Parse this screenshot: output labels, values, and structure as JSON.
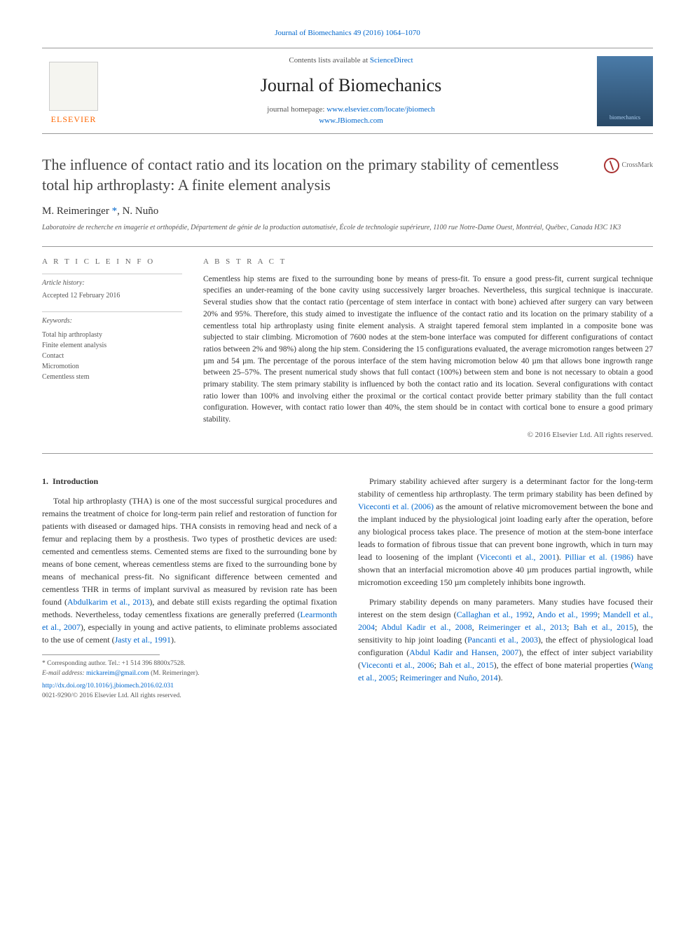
{
  "top_citation": "Journal of Biomechanics 49 (2016) 1064–1070",
  "header": {
    "contents_prefix": "Contents lists available at ",
    "contents_link": "ScienceDirect",
    "journal_name": "Journal of Biomechanics",
    "homepage_prefix": "journal homepage: ",
    "homepage_link1": "www.elsevier.com/locate/jbiomech",
    "homepage_link2": "www.JBiomech.com",
    "publisher_logo_text": "ELSEVIER",
    "cover_text": "biomechanics"
  },
  "crossmark_label": "CrossMark",
  "title": "The influence of contact ratio and its location on the primary stability of cementless total hip arthroplasty: A finite element analysis",
  "authors": {
    "a1": "M. Reimeringer",
    "a2": "N. Nuño",
    "corr": "*"
  },
  "affiliation": "Laboratoire de recherche en imagerie et orthopédie, Département de génie de la production automatisée, École de technologie supérieure, 1100 rue Notre-Dame Ouest, Montréal, Québec, Canada H3C 1K3",
  "article_info": {
    "heading": "A R T I C L E   I N F O",
    "history_label": "Article history:",
    "history_value": "Accepted 12 February 2016",
    "keywords_label": "Keywords:",
    "keywords": [
      "Total hip arthroplasty",
      "Finite element analysis",
      "Contact",
      "Micromotion",
      "Cementless stem"
    ]
  },
  "abstract": {
    "heading": "A B S T R A C T",
    "text": "Cementless hip stems are fixed to the surrounding bone by means of press-fit. To ensure a good press-fit, current surgical technique specifies an under-reaming of the bone cavity using successively larger broaches. Nevertheless, this surgical technique is inaccurate. Several studies show that the contact ratio (percentage of stem interface in contact with bone) achieved after surgery can vary between 20% and 95%. Therefore, this study aimed to investigate the influence of the contact ratio and its location on the primary stability of a cementless total hip arthroplasty using finite element analysis. A straight tapered femoral stem implanted in a composite bone was subjected to stair climbing. Micromotion of 7600 nodes at the stem-bone interface was computed for different configurations of contact ratios between 2% and 98%) along the hip stem. Considering the 15 configurations evaluated, the average micromotion ranges between 27 µm and 54 µm. The percentage of the porous interface of the stem having micromotion below 40 µm that allows bone ingrowth range between 25–57%. The present numerical study shows that full contact (100%) between stem and bone is not necessary to obtain a good primary stability. The stem primary stability is influenced by both the contact ratio and its location. Several configurations with contact ratio lower than 100% and involving either the proximal or the cortical contact provide better primary stability than the full contact configuration. However, with contact ratio lower than 40%, the stem should be in contact with cortical bone to ensure a good primary stability.",
    "copyright": "© 2016 Elsevier Ltd. All rights reserved."
  },
  "body": {
    "section_number": "1.",
    "section_title": "Introduction",
    "p1_a": "Total hip arthroplasty (THA) is one of the most successful surgical procedures and remains the treatment of choice for long-term pain relief and restoration of function for patients with diseased or damaged hips. THA consists in removing head and neck of a femur and replacing them by a prosthesis. Two types of prosthetic devices are used: cemented and cementless stems. Cemented stems are fixed to the surrounding bone by means of bone cement, whereas cementless stems are fixed to the surrounding bone by means of mechanical press-fit. No significant difference between cemented and cementless THR in terms of implant survival as measured by revision rate has been found (",
    "p1_c1": "Abdulkarim et al., 2013",
    "p1_b": "), and debate still exists regarding the optimal fixation methods. Nevertheless, today cementless fixations are generally preferred (",
    "p1_c2": "Learmonth et al., 2007",
    "p1_c": "), especially in young and active patients, to eliminate problems associated to the use of cement (",
    "p1_c3": "Jasty et al., 1991",
    "p1_d": ").",
    "p2_a": "Primary stability achieved after surgery is a determinant factor for the long-term stability of cementless hip arthroplasty. The term primary stability has been defined by ",
    "p2_c1": "Viceconti et al. (2006)",
    "p2_b": " as the amount of relative micromovement between the bone and the implant induced by the physiological joint loading early after the operation, before any biological process takes place. The presence of motion at the stem-bone interface leads to formation of fibrous tissue that can prevent bone ingrowth, which in turn may lead to loosening of the implant (",
    "p2_c2": "Viceconti et al., 2001",
    "p2_c": "). ",
    "p2_c3": "Pilliar et al. (1986)",
    "p2_d": " have shown that an interfacial micromotion above 40 µm produces partial ingrowth, while micromotion exceeding 150 µm completely inhibits bone ingrowth.",
    "p3_a": "Primary stability depends on many parameters. Many studies have focused their interest on the stem design (",
    "p3_c1": "Callaghan et al., 1992",
    "p3_s1": ", ",
    "p3_c2": "Ando et al., 1999",
    "p3_s2": "; ",
    "p3_c3": "Mandell et al., 2004",
    "p3_s3": "; ",
    "p3_c4": "Abdul Kadir et al., 2008",
    "p3_s4": ", ",
    "p3_c5": "Reimeringer et al., 2013",
    "p3_s5": "; ",
    "p3_c6": "Bah et al., 2015",
    "p3_b": "), the sensitivity to hip joint loading (",
    "p3_c7": "Pancanti et al., 2003",
    "p3_c": "), the effect of physiological load configuration (",
    "p3_c8": "Abdul Kadir and Hansen, 2007",
    "p3_d": "), the effect of inter subject variability (",
    "p3_c9": "Viceconti et al., 2006",
    "p3_s6": "; ",
    "p3_c10": "Bah et al., 2015",
    "p3_e": "), the effect of bone material properties (",
    "p3_c11": "Wang et al., 2005",
    "p3_s7": "; ",
    "p3_c12": "Reimeringer and Nuño, 2014",
    "p3_f": ")."
  },
  "footnote": {
    "corr_label": "* Corresponding author. Tel.: +1 514 396 8800x7528.",
    "email_label": "E-mail address: ",
    "email": "mickareim@gmail.com",
    "email_name": " (M. Reimeringer)."
  },
  "bottom": {
    "doi": "http://dx.doi.org/10.1016/j.jbiomech.2016.02.031",
    "issn": "0021-9290/© 2016 Elsevier Ltd. All rights reserved."
  },
  "colors": {
    "link": "#0066cc",
    "elsevier_orange": "#ff6600",
    "text": "#333333",
    "muted": "#555555",
    "rule": "#999999"
  },
  "typography": {
    "body_font": "Georgia, Times New Roman, serif",
    "title_size_pt": 22,
    "journal_size_pt": 26,
    "body_size_pt": 12,
    "abstract_size_pt": 11.5,
    "footnote_size_pt": 9.5
  }
}
